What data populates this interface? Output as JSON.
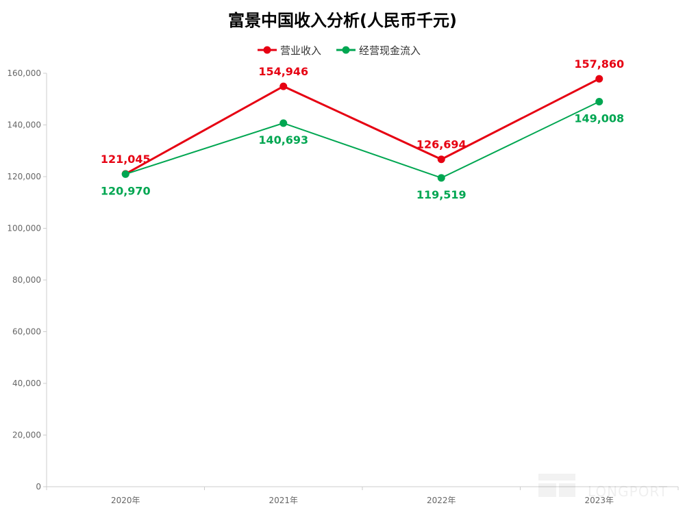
{
  "chart_data": {
    "type": "line",
    "title": "富景中国收入分析(人民币千元)",
    "categories": [
      "2020年",
      "2021年",
      "2022年",
      "2023年"
    ],
    "series": [
      {
        "name": "营业收入",
        "color": "#e60012",
        "values": [
          121045,
          154946,
          126694,
          157860
        ],
        "labels": [
          "121,045",
          "154,946",
          "126,694",
          "157,860"
        ]
      },
      {
        "name": "经营现金流入",
        "color": "#00a651",
        "values": [
          120970,
          140693,
          119519,
          149008
        ],
        "labels": [
          "120,970",
          "140,693",
          "119,519",
          "149,008"
        ]
      }
    ],
    "ylim": [
      0,
      160000
    ],
    "yticks": [
      0,
      20000,
      40000,
      60000,
      80000,
      100000,
      120000,
      140000,
      160000
    ],
    "ytick_labels": [
      "0",
      "20,000",
      "40,000",
      "60,000",
      "80,000",
      "100,000",
      "120,000",
      "140,000",
      "160,000"
    ],
    "grid": false,
    "legend_position": "top-center"
  },
  "watermark": "LONGPORT"
}
